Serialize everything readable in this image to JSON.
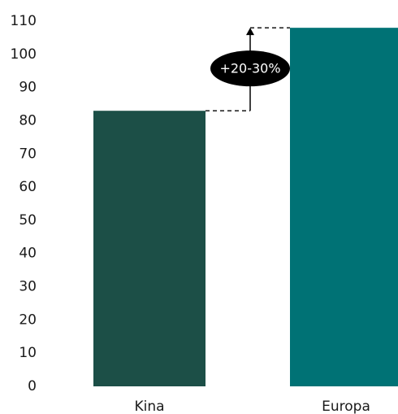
{
  "chart_data": {
    "type": "bar",
    "categories": [
      "Kina",
      "Europa"
    ],
    "values": [
      83,
      108
    ],
    "colors": [
      "#1c4f47",
      "#007275"
    ],
    "ylim": [
      0,
      110
    ],
    "yticks": [
      0,
      10,
      20,
      30,
      40,
      50,
      60,
      70,
      80,
      90,
      100,
      110
    ],
    "title": "",
    "xlabel": "",
    "ylabel": "",
    "grid": false,
    "annotation": {
      "text": "+20-30%",
      "from_category": "Kina",
      "to_category": "Europa",
      "style": "dashed bracket with upward arrow",
      "badge_color": "#000000",
      "text_color": "#ffffff"
    }
  }
}
